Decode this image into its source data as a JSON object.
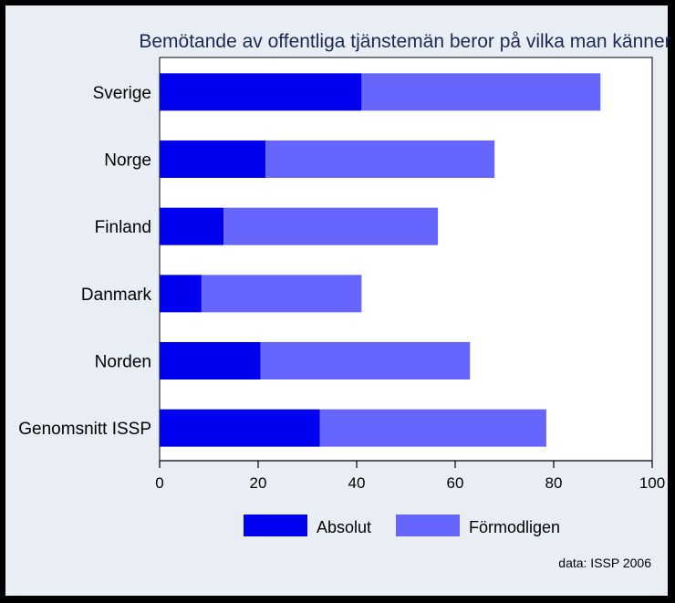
{
  "chart_data": {
    "type": "bar",
    "orientation": "horizontal",
    "stacked": true,
    "title": "Bemötande av offentliga tjänstemän beror på vilka man känner",
    "categories": [
      "Sverige",
      "Norge",
      "Finland",
      "Danmark",
      "Norden",
      "Genomsnitt ISSP"
    ],
    "series": [
      {
        "name": "Absolut",
        "values": [
          41,
          21.5,
          13,
          8.5,
          20.5,
          32.5
        ],
        "color": "#0000ee"
      },
      {
        "name": "Förmodligen",
        "values": [
          48.5,
          46.5,
          43.5,
          32.5,
          42.5,
          46
        ],
        "color": "#6666ff"
      }
    ],
    "xlim": [
      0,
      100
    ],
    "xticks": [
      "0",
      "20",
      "40",
      "60",
      "80",
      "100"
    ],
    "grid": false,
    "legend_position": "bottom",
    "source_note": "data: ISSP 2006"
  }
}
